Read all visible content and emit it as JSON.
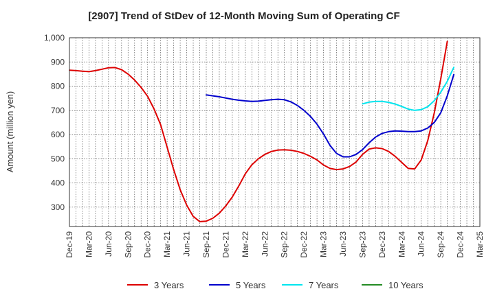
{
  "chart_data": {
    "type": "line",
    "title": "[2907]  Trend of StDev of 12-Month Moving Sum of Operating CF",
    "ylabel": "Amount (million yen)",
    "xlabel": "",
    "ylim": [
      220,
      1000
    ],
    "xlim": [
      "Dec-19",
      "Mar-25"
    ],
    "yticks": [
      "300",
      "400",
      "500",
      "600",
      "700",
      "800",
      "900",
      "1,000"
    ],
    "ytick_values": [
      300,
      400,
      500,
      600,
      700,
      800,
      900,
      1000
    ],
    "xticks": [
      "Dec-19",
      "Mar-20",
      "Jun-20",
      "Sep-20",
      "Dec-20",
      "Mar-21",
      "Jun-21",
      "Sep-21",
      "Dec-21",
      "Mar-22",
      "Jun-22",
      "Sep-22",
      "Dec-22",
      "Mar-23",
      "Jun-23",
      "Sep-23",
      "Dec-23",
      "Mar-24",
      "Jun-24",
      "Sep-24",
      "Dec-24",
      "Mar-25"
    ],
    "grid": true,
    "legend_position": "bottom",
    "series": [
      {
        "name": "3 Years",
        "color": "#dd0000",
        "points": [
          [
            "Dec-19",
            866
          ],
          [
            "Jan-20",
            864
          ],
          [
            "Feb-20",
            862
          ],
          [
            "Mar-20",
            860
          ],
          [
            "Apr-20",
            864
          ],
          [
            "May-20",
            870
          ],
          [
            "Jun-20",
            876
          ],
          [
            "Jul-20",
            877
          ],
          [
            "Aug-20",
            868
          ],
          [
            "Sep-20",
            850
          ],
          [
            "Oct-20",
            825
          ],
          [
            "Nov-20",
            795
          ],
          [
            "Dec-20",
            758
          ],
          [
            "Jan-21",
            705
          ],
          [
            "Feb-21",
            640
          ],
          [
            "Mar-21",
            548
          ],
          [
            "Apr-21",
            455
          ],
          [
            "May-21",
            372
          ],
          [
            "Jun-21",
            308
          ],
          [
            "Jul-21",
            262
          ],
          [
            "Aug-21",
            240
          ],
          [
            "Sep-21",
            242
          ],
          [
            "Oct-21",
            254
          ],
          [
            "Nov-21",
            275
          ],
          [
            "Dec-21",
            305
          ],
          [
            "Jan-22",
            342
          ],
          [
            "Feb-22",
            388
          ],
          [
            "Mar-22",
            438
          ],
          [
            "Apr-22",
            475
          ],
          [
            "May-22",
            500
          ],
          [
            "Jun-22",
            518
          ],
          [
            "Jul-22",
            530
          ],
          [
            "Aug-22",
            536
          ],
          [
            "Sep-22",
            537
          ],
          [
            "Oct-22",
            535
          ],
          [
            "Nov-22",
            530
          ],
          [
            "Dec-22",
            522
          ],
          [
            "Jan-23",
            510
          ],
          [
            "Feb-23",
            495
          ],
          [
            "Mar-23",
            474
          ],
          [
            "Apr-23",
            460
          ],
          [
            "May-23",
            455
          ],
          [
            "Jun-23",
            458
          ],
          [
            "Jul-23",
            468
          ],
          [
            "Aug-23",
            487
          ],
          [
            "Sep-23",
            518
          ],
          [
            "Oct-23",
            540
          ],
          [
            "Nov-23",
            545
          ],
          [
            "Dec-23",
            542
          ],
          [
            "Jan-24",
            530
          ],
          [
            "Feb-24",
            510
          ],
          [
            "Mar-24",
            485
          ],
          [
            "Apr-24",
            460
          ],
          [
            "May-24",
            458
          ],
          [
            "Jun-24",
            495
          ],
          [
            "Jul-24",
            575
          ],
          [
            "Aug-24",
            690
          ],
          [
            "Sep-24",
            830
          ],
          [
            "Oct-24",
            985
          ]
        ]
      },
      {
        "name": "5 Years",
        "color": "#0000cc",
        "points": [
          [
            "Sep-21",
            764
          ],
          [
            "Oct-21",
            760
          ],
          [
            "Nov-21",
            756
          ],
          [
            "Dec-21",
            751
          ],
          [
            "Jan-22",
            746
          ],
          [
            "Feb-22",
            742
          ],
          [
            "Mar-22",
            739
          ],
          [
            "Apr-22",
            737
          ],
          [
            "May-22",
            738
          ],
          [
            "Jun-22",
            741
          ],
          [
            "Jul-22",
            744
          ],
          [
            "Aug-22",
            746
          ],
          [
            "Sep-22",
            744
          ],
          [
            "Oct-22",
            735
          ],
          [
            "Nov-22",
            720
          ],
          [
            "Dec-22",
            700
          ],
          [
            "Jan-23",
            675
          ],
          [
            "Feb-23",
            643
          ],
          [
            "Mar-23",
            602
          ],
          [
            "Apr-23",
            555
          ],
          [
            "May-23",
            522
          ],
          [
            "Jun-23",
            508
          ],
          [
            "Jul-23",
            508
          ],
          [
            "Aug-23",
            518
          ],
          [
            "Sep-23",
            538
          ],
          [
            "Oct-23",
            566
          ],
          [
            "Nov-23",
            590
          ],
          [
            "Dec-23",
            605
          ],
          [
            "Jan-24",
            612
          ],
          [
            "Feb-24",
            615
          ],
          [
            "Mar-24",
            614
          ],
          [
            "Apr-24",
            612
          ],
          [
            "May-24",
            612
          ],
          [
            "Jun-24",
            615
          ],
          [
            "Jul-24",
            627
          ],
          [
            "Aug-24",
            650
          ],
          [
            "Sep-24",
            690
          ],
          [
            "Oct-24",
            760
          ],
          [
            "Nov-24",
            848
          ]
        ]
      },
      {
        "name": "7 Years",
        "color": "#00e5ee",
        "points": [
          [
            "Sep-23",
            727
          ],
          [
            "Oct-23",
            734
          ],
          [
            "Nov-23",
            737
          ],
          [
            "Dec-23",
            737
          ],
          [
            "Jan-24",
            733
          ],
          [
            "Feb-24",
            726
          ],
          [
            "Mar-24",
            716
          ],
          [
            "Apr-24",
            705
          ],
          [
            "May-24",
            700
          ],
          [
            "Jun-24",
            703
          ],
          [
            "Jul-24",
            715
          ],
          [
            "Aug-24",
            740
          ],
          [
            "Sep-24",
            775
          ],
          [
            "Oct-24",
            820
          ],
          [
            "Nov-24",
            878
          ]
        ]
      },
      {
        "name": "10 Years",
        "color": "#228b22",
        "points": []
      }
    ]
  }
}
